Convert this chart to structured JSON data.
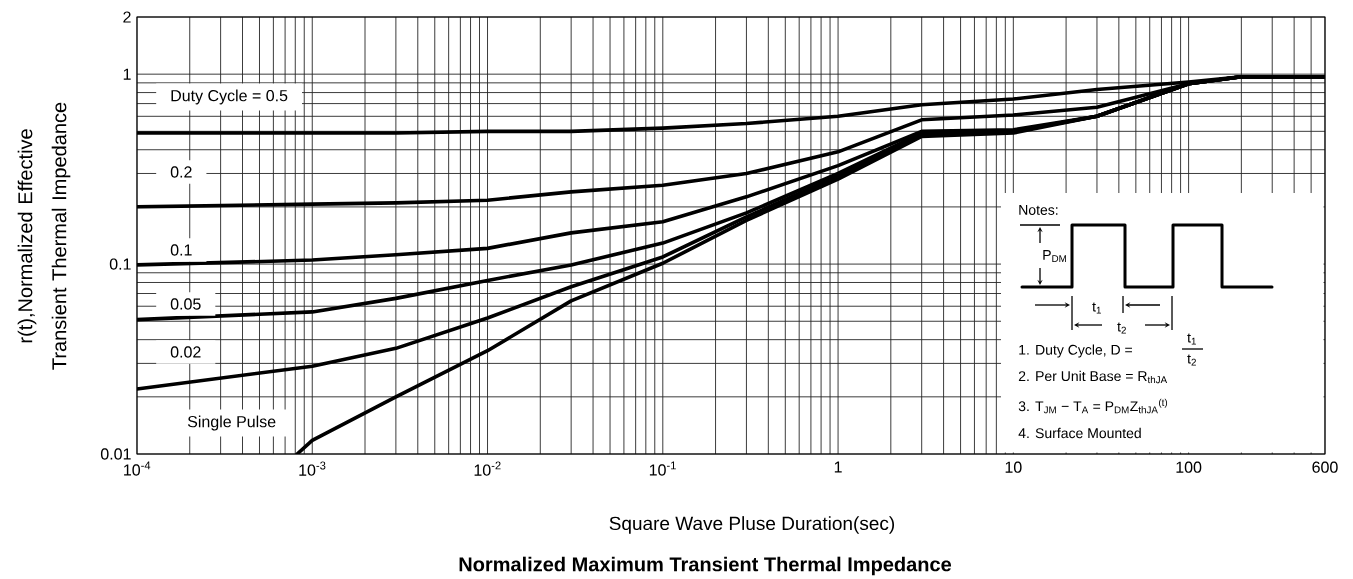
{
  "chart_data": {
    "type": "line",
    "title": "Normalized Maximum Transient Thermal Impedance",
    "xlabel": "Square Wave Pluse Duration(sec)",
    "ylabel": "r(t),Normalized Effective Transient Thermal Impedance",
    "log": "xy",
    "grid": true,
    "line_style": "solid",
    "xlim": [
      0.0001,
      600
    ],
    "ylim": [
      0.01,
      2
    ],
    "xticks": [
      {
        "value": 0.0001,
        "label": "10$^{-4}$"
      },
      {
        "value": 0.001,
        "label": "10$^{-3}$"
      },
      {
        "value": 0.01,
        "label": "10$^{-2}$"
      },
      {
        "value": 0.1,
        "label": "10$^{-1}$"
      },
      1,
      10,
      100,
      600
    ],
    "yticks": [
      0.01,
      0.1,
      1,
      2
    ],
    "x": [
      0.0001,
      0.001,
      0.003,
      0.01,
      0.03,
      0.1,
      0.3,
      1,
      3,
      10,
      30,
      100,
      200,
      600
    ],
    "series": [
      {
        "name": "Duty Cycle = 0.5",
        "color": "#000000",
        "values": [
          0.49,
          0.49,
          0.49,
          0.5,
          0.5,
          0.52,
          0.55,
          0.6,
          0.69,
          0.74,
          0.83,
          0.91,
          0.97,
          0.97
        ]
      },
      {
        "name": "0.2",
        "color": "#000000",
        "values": [
          0.2,
          0.207,
          0.21,
          0.217,
          0.24,
          0.26,
          0.3,
          0.39,
          0.575,
          0.61,
          0.67,
          0.89,
          0.97,
          0.97
        ]
      },
      {
        "name": "0.1",
        "color": "#000000",
        "values": [
          0.099,
          0.105,
          0.112,
          0.121,
          0.146,
          0.167,
          0.226,
          0.33,
          0.5,
          0.51,
          0.6,
          0.89,
          0.97,
          0.97
        ]
      },
      {
        "name": "0.05",
        "color": "#000000",
        "values": [
          0.051,
          0.056,
          0.066,
          0.082,
          0.099,
          0.129,
          0.186,
          0.3,
          0.49,
          0.5,
          0.6,
          0.89,
          0.97,
          0.97
        ]
      },
      {
        "name": "0.02",
        "color": "#000000",
        "values": [
          0.022,
          0.029,
          0.036,
          0.052,
          0.076,
          0.109,
          0.177,
          0.29,
          0.48,
          0.5,
          0.6,
          0.89,
          0.97,
          0.97
        ]
      },
      {
        "name": "Single Pulse",
        "color": "#000000",
        "x": [
          0.00082,
          0.001,
          0.003,
          0.01,
          0.03,
          0.1,
          0.3,
          1,
          3,
          10,
          30,
          100,
          200,
          600
        ],
        "values": [
          0.01,
          0.0118,
          0.02,
          0.035,
          0.064,
          0.101,
          0.17,
          0.28,
          0.47,
          0.49,
          0.6,
          0.89,
          0.97,
          0.97
        ]
      }
    ],
    "annotations": [
      "Notes:",
      "P$_{DM}$",
      "t$_{1}$",
      "t$_{2}$",
      "1. Duty Cycle, D =",
      "t$_{1}$",
      "t$_{2}$",
      "2. Per Unit Base = R$_{thJA}$",
      "3. T$_{JM}$ − T$_{A}$ = P$_{DM}$Z$_{thJA}$$^{(t)}$",
      "4. Surface Mounted"
    ]
  }
}
